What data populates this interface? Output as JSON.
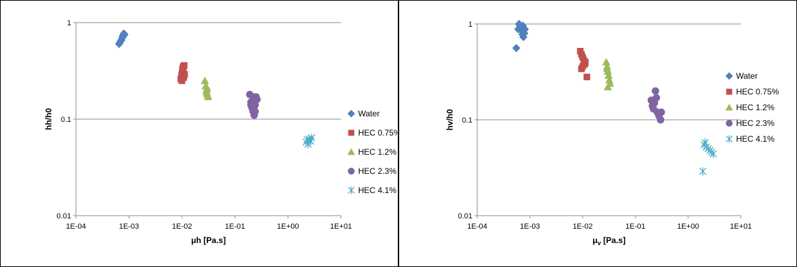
{
  "chart_data": [
    {
      "type": "scatter",
      "xlabel": "μh [Pa.s]",
      "ylabel": "hh/h0",
      "x_scale": "log",
      "y_scale": "log",
      "xlim": [
        0.0001,
        10
      ],
      "ylim": [
        0.01,
        1
      ],
      "x_ticks": [
        "1E-04",
        "1E-03",
        "1E-02",
        "1E-01",
        "1E+00",
        "1E+01"
      ],
      "y_ticks": [
        "0.01",
        "0.1",
        "1"
      ],
      "grid": "horizontal",
      "legend": "right",
      "series": [
        {
          "name": "Water",
          "color": "#4f81bd",
          "marker": "diamond",
          "points": [
            [
              0.00065,
              0.6
            ],
            [
              0.00068,
              0.63
            ],
            [
              0.00072,
              0.66
            ],
            [
              0.00075,
              0.7
            ],
            [
              0.00078,
              0.74
            ],
            [
              0.0008,
              0.77
            ],
            [
              0.00077,
              0.72
            ],
            [
              0.00082,
              0.75
            ]
          ]
        },
        {
          "name": "HEC 0.75%",
          "color": "#c0504d",
          "marker": "square",
          "points": [
            [
              0.0095,
              0.26
            ],
            [
              0.0098,
              0.28
            ],
            [
              0.01,
              0.3
            ],
            [
              0.0102,
              0.33
            ],
            [
              0.0105,
              0.35
            ],
            [
              0.011,
              0.36
            ],
            [
              0.0108,
              0.27
            ],
            [
              0.0112,
              0.29
            ],
            [
              0.01,
              0.25
            ],
            [
              0.0106,
              0.31
            ]
          ]
        },
        {
          "name": "HEC 1.2%",
          "color": "#9bbb59",
          "marker": "triangle",
          "points": [
            [
              0.027,
              0.25
            ],
            [
              0.028,
              0.22
            ],
            [
              0.029,
              0.2
            ],
            [
              0.03,
              0.18
            ],
            [
              0.031,
              0.17
            ],
            [
              0.029,
              0.19
            ],
            [
              0.03,
              0.21
            ]
          ]
        },
        {
          "name": "HEC 2.3%",
          "color": "#8064a2",
          "marker": "circle",
          "points": [
            [
              0.19,
              0.18
            ],
            [
              0.2,
              0.15
            ],
            [
              0.21,
              0.13
            ],
            [
              0.22,
              0.12
            ],
            [
              0.23,
              0.11
            ],
            [
              0.24,
              0.14
            ],
            [
              0.25,
              0.17
            ],
            [
              0.26,
              0.16
            ],
            [
              0.22,
              0.17
            ],
            [
              0.2,
              0.14
            ],
            [
              0.24,
              0.12
            ]
          ]
        },
        {
          "name": "HEC 4.1%",
          "color": "#4bacc6",
          "marker": "star",
          "points": [
            [
              2.2,
              0.058
            ],
            [
              2.4,
              0.055
            ],
            [
              2.5,
              0.062
            ],
            [
              2.6,
              0.06
            ],
            [
              2.8,
              0.064
            ],
            [
              2.3,
              0.061
            ],
            [
              2.7,
              0.059
            ]
          ]
        }
      ]
    },
    {
      "type": "scatter",
      "xlabel": "μ",
      "xlabel_sub": "v",
      "xlabel_suffix": " [Pa.s]",
      "ylabel": "hv/h0",
      "x_scale": "log",
      "y_scale": "log",
      "xlim": [
        0.0001,
        10
      ],
      "ylim": [
        0.01,
        1
      ],
      "x_ticks": [
        "1E-04",
        "1E-03",
        "1E-02",
        "1E-01",
        "1E+00",
        "1E+01"
      ],
      "y_ticks": [
        "0.01",
        "0.1",
        "1"
      ],
      "grid": "horizontal",
      "legend": "right",
      "series": [
        {
          "name": "Water",
          "color": "#4f81bd",
          "marker": "diamond",
          "points": [
            [
              0.00055,
              0.56
            ],
            [
              0.0006,
              0.88
            ],
            [
              0.00062,
              1.0
            ],
            [
              0.00065,
              0.95
            ],
            [
              0.00068,
              0.92
            ],
            [
              0.0007,
              0.85
            ],
            [
              0.00072,
              0.78
            ],
            [
              0.00075,
              0.73
            ],
            [
              0.0008,
              0.88
            ],
            [
              0.00078,
              0.8
            ],
            [
              0.00073,
              0.96
            ]
          ]
        },
        {
          "name": "HEC 0.75%",
          "color": "#c0504d",
          "marker": "square",
          "points": [
            [
              0.009,
              0.52
            ],
            [
              0.0095,
              0.48
            ],
            [
              0.01,
              0.45
            ],
            [
              0.0105,
              0.42
            ],
            [
              0.011,
              0.38
            ],
            [
              0.0112,
              0.4
            ],
            [
              0.0095,
              0.34
            ],
            [
              0.012,
              0.28
            ],
            [
              0.01,
              0.36
            ]
          ]
        },
        {
          "name": "HEC 1.2%",
          "color": "#9bbb59",
          "marker": "triangle",
          "points": [
            [
              0.028,
              0.4
            ],
            [
              0.029,
              0.36
            ],
            [
              0.03,
              0.32
            ],
            [
              0.031,
              0.29
            ],
            [
              0.032,
              0.26
            ],
            [
              0.033,
              0.24
            ],
            [
              0.03,
              0.22
            ],
            [
              0.029,
              0.34
            ]
          ]
        },
        {
          "name": "HEC 2.3%",
          "color": "#8064a2",
          "marker": "circle",
          "points": [
            [
              0.2,
              0.16
            ],
            [
              0.21,
              0.14
            ],
            [
              0.22,
              0.13
            ],
            [
              0.23,
              0.15
            ],
            [
              0.24,
              0.2
            ],
            [
              0.25,
              0.17
            ],
            [
              0.26,
              0.12
            ],
            [
              0.28,
              0.11
            ],
            [
              0.3,
              0.1
            ],
            [
              0.31,
              0.12
            ],
            [
              0.22,
              0.15
            ]
          ]
        },
        {
          "name": "HEC 4.1%",
          "color": "#4bacc6",
          "marker": "star",
          "points": [
            [
              1.9,
              0.029
            ],
            [
              2.0,
              0.055
            ],
            [
              2.1,
              0.058
            ],
            [
              2.2,
              0.052
            ],
            [
              2.4,
              0.05
            ],
            [
              2.6,
              0.048
            ],
            [
              2.8,
              0.046
            ],
            [
              3.0,
              0.044
            ]
          ]
        }
      ]
    }
  ]
}
